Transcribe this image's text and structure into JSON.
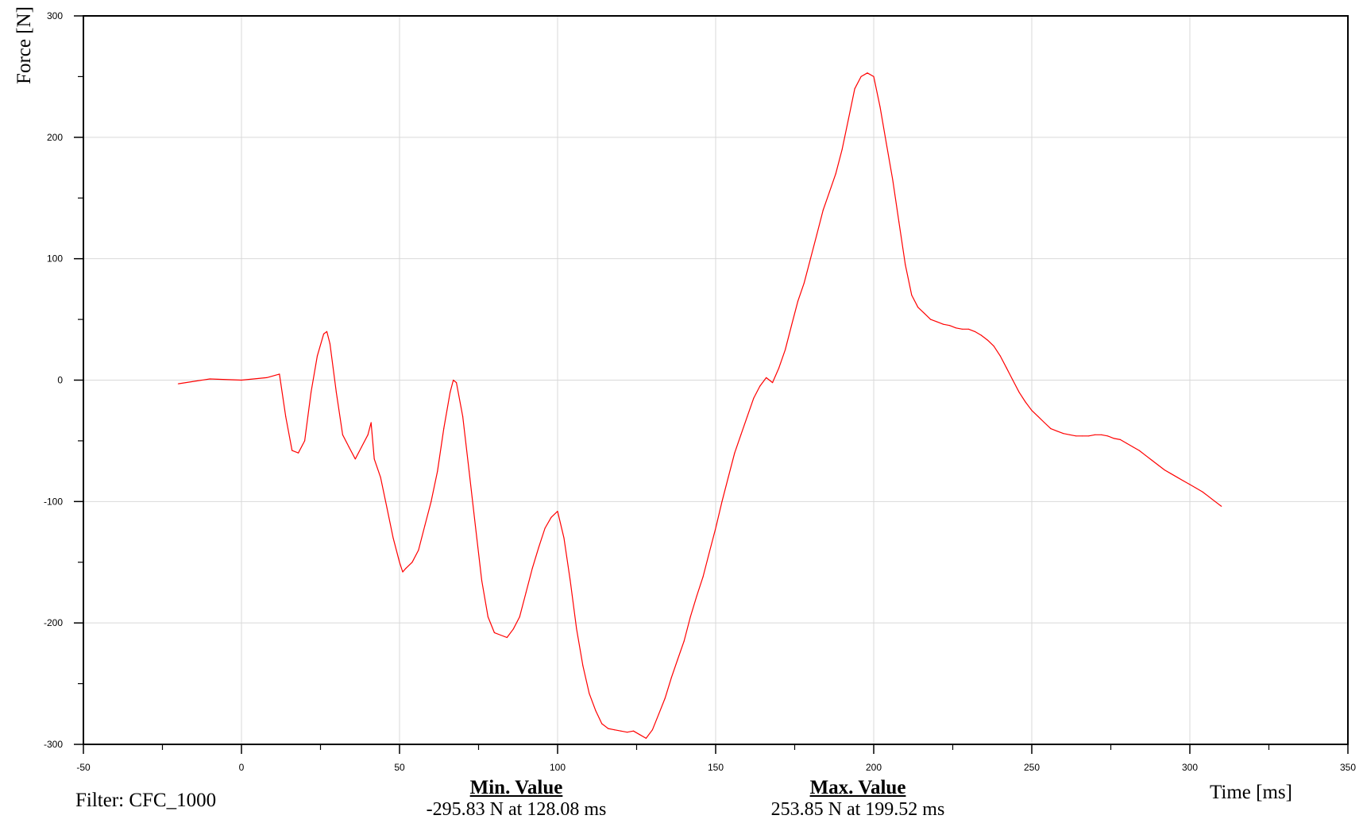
{
  "chart_data": {
    "type": "line",
    "xlabel": "Time [ms]",
    "ylabel": "Force [N]",
    "xlim": [
      -50,
      350
    ],
    "ylim": [
      -300,
      300
    ],
    "x_ticks": [
      "-50",
      "0",
      "50",
      "100",
      "150",
      "200",
      "250",
      "300",
      "350"
    ],
    "y_ticks": [
      "300",
      "200",
      "100",
      "0",
      "-100",
      "-200",
      "-300"
    ],
    "grid": true,
    "series": [
      {
        "color": "#ff0000",
        "x": [
          -20,
          -10,
          0,
          8,
          12,
          14,
          16,
          18,
          20,
          22,
          24,
          26,
          27,
          28,
          30,
          32,
          34,
          36,
          38,
          40,
          41,
          42,
          44,
          46,
          48,
          50,
          51,
          52,
          54,
          56,
          58,
          60,
          62,
          64,
          66,
          67,
          68,
          70,
          72,
          74,
          76,
          78,
          80,
          82,
          84,
          86,
          88,
          90,
          92,
          94,
          96,
          98,
          100,
          102,
          104,
          106,
          108,
          110,
          112,
          114,
          116,
          118,
          120,
          122,
          124,
          126,
          128,
          130,
          132,
          134,
          136,
          138,
          140,
          142,
          144,
          146,
          148,
          150,
          152,
          154,
          156,
          158,
          160,
          162,
          164,
          166,
          168,
          170,
          172,
          174,
          176,
          178,
          180,
          182,
          184,
          186,
          188,
          190,
          192,
          194,
          196,
          198,
          200,
          202,
          204,
          206,
          208,
          210,
          212,
          214,
          216,
          218,
          220,
          222,
          224,
          226,
          228,
          230,
          232,
          234,
          236,
          238,
          240,
          242,
          244,
          246,
          248,
          250,
          252,
          254,
          256,
          258,
          260,
          262,
          264,
          266,
          268,
          270,
          272,
          274,
          276,
          278,
          280,
          282,
          284,
          286,
          288,
          290,
          292,
          294,
          296,
          298,
          300,
          302,
          304,
          306,
          308,
          310
        ],
        "y": [
          -3,
          1,
          0,
          2,
          5,
          -30,
          -58,
          -60,
          -50,
          -10,
          20,
          38,
          40,
          30,
          -10,
          -45,
          -55,
          -65,
          -55,
          -45,
          -35,
          -65,
          -80,
          -105,
          -130,
          -150,
          -158,
          -155,
          -150,
          -140,
          -120,
          -100,
          -75,
          -40,
          -10,
          0,
          -2,
          -30,
          -75,
          -120,
          -165,
          -195,
          -208,
          -210,
          -212,
          -205,
          -195,
          -175,
          -155,
          -138,
          -122,
          -113,
          -108,
          -130,
          -165,
          -205,
          -235,
          -258,
          -272,
          -283,
          -287,
          -288,
          -289,
          -290,
          -289,
          -292,
          -295,
          -288,
          -275,
          -262,
          -245,
          -230,
          -215,
          -195,
          -178,
          -162,
          -142,
          -122,
          -100,
          -80,
          -60,
          -45,
          -30,
          -15,
          -5,
          2,
          -2,
          10,
          25,
          45,
          65,
          80,
          100,
          120,
          140,
          155,
          170,
          190,
          215,
          240,
          250,
          253,
          250,
          225,
          195,
          165,
          130,
          95,
          70,
          60,
          55,
          50,
          48,
          46,
          45,
          43,
          42,
          42,
          40,
          37,
          33,
          28,
          20,
          10,
          0,
          -10,
          -18,
          -25,
          -30,
          -35,
          -40,
          -42,
          -44,
          -45,
          -46,
          -46,
          -46,
          -45,
          -45,
          -46,
          -48,
          -49,
          -52,
          -55,
          -58,
          -62,
          -66,
          -70,
          -74,
          -77,
          -80,
          -83,
          -86,
          -89,
          -92,
          -96,
          -100,
          -104
        ]
      }
    ]
  },
  "footer": {
    "filter_label": "Filter: CFC_1000",
    "min_title": "Min. Value",
    "min_value": "-295.83 N at 128.08 ms",
    "max_title": "Max. Value",
    "max_value": "253.85 N at 199.52 ms"
  }
}
